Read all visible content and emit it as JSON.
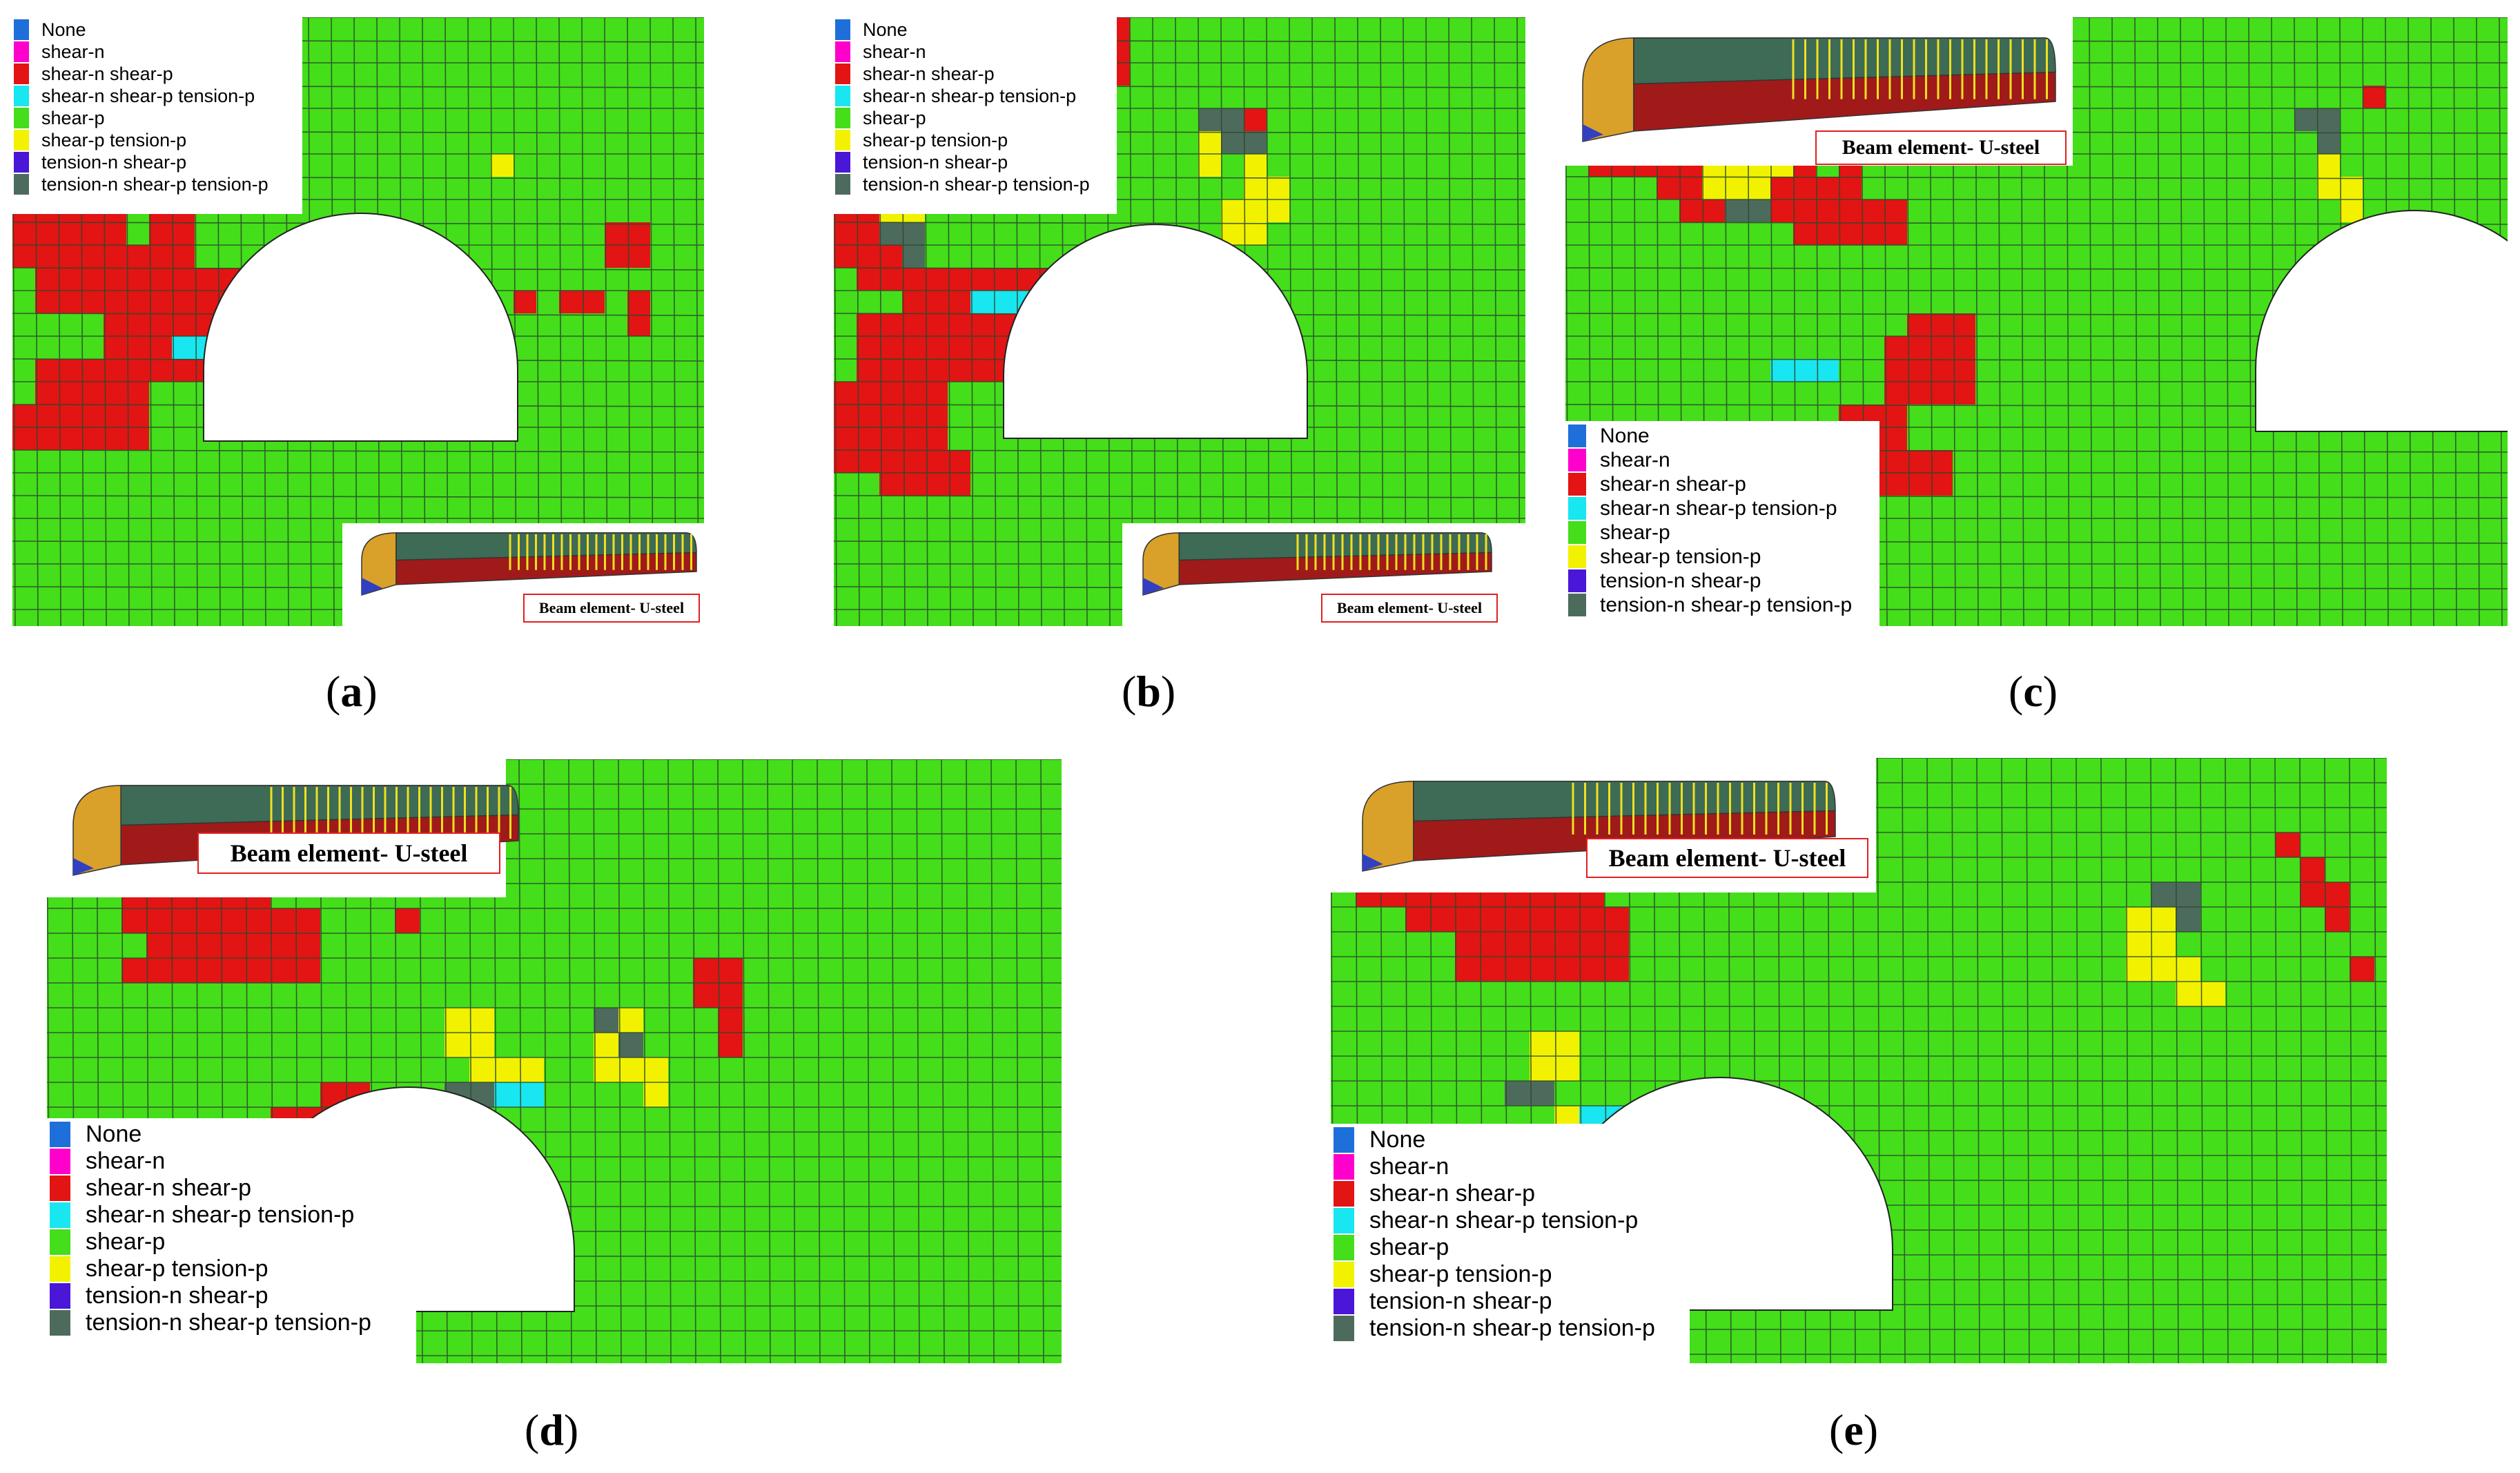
{
  "colors": {
    "none": "#1e6fd9",
    "shear_n": "#ff00cc",
    "shear_n_shear_p": "#e31414",
    "shear_n_shear_p_tension_p": "#18e6f0",
    "shear_p": "#44de1a",
    "shear_p_tension_p": "#f2f200",
    "tension_n_shear_p": "#4a16d8",
    "tension_n_shear_p_tension_p": "#4d6b5c",
    "mesh_line": "#2b4a2b",
    "label_border": "#e02020"
  },
  "legend": [
    {
      "key": "none",
      "label": "None"
    },
    {
      "key": "shear_n",
      "label": "shear-n"
    },
    {
      "key": "shear_n_shear_p",
      "label": "shear-n shear-p"
    },
    {
      "key": "shear_n_shear_p_tension_p",
      "label": "shear-n shear-p tension-p"
    },
    {
      "key": "shear_p",
      "label": "shear-p"
    },
    {
      "key": "shear_p_tension_p",
      "label": "shear-p tension-p"
    },
    {
      "key": "tension_n_shear_p",
      "label": "tension-n shear-p"
    },
    {
      "key": "tension_n_shear_p_tension_p",
      "label": "tension-n shear-p tension-p"
    }
  ],
  "inset_label": "Beam element- U-steel",
  "panels": [
    {
      "id": "a",
      "caption_open": "(",
      "caption_letter": "a",
      "caption_close": ")"
    },
    {
      "id": "b",
      "caption_open": "(",
      "caption_letter": "b",
      "caption_close": ")"
    },
    {
      "id": "c",
      "caption_open": "(",
      "caption_letter": "c",
      "caption_close": ")"
    },
    {
      "id": "d",
      "caption_open": "(",
      "caption_letter": "d",
      "caption_close": ")"
    },
    {
      "id": "e",
      "caption_open": "(",
      "caption_letter": "e",
      "caption_close": ")"
    }
  ]
}
